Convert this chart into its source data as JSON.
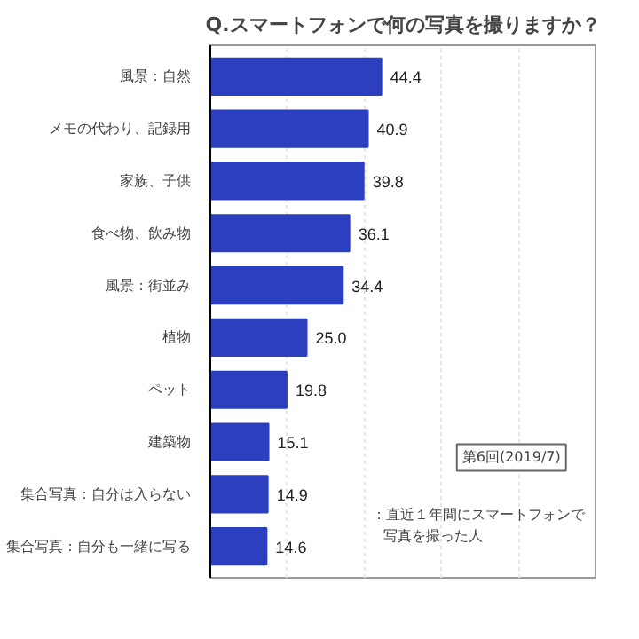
{
  "chart_data": {
    "type": "bar",
    "orientation": "horizontal",
    "title": "Q.スマートフォンで何の写真を撮りますか？",
    "categories": [
      "風景：自然",
      "メモの代わり、記録用",
      "家族、子供",
      "食べ物、飲み物",
      "風景：街並み",
      "植物",
      "ペット",
      "建築物",
      "集合写真：自分は入らない",
      "集合写真：自分も一緒に写る"
    ],
    "values": [
      44.4,
      40.9,
      39.8,
      36.1,
      34.4,
      25.0,
      19.8,
      15.1,
      14.9,
      14.6
    ],
    "color": "#2b3fbf",
    "value_labels": [
      "44.4",
      "40.9",
      "39.8",
      "36.1",
      "34.4",
      "25.0",
      "19.8",
      "15.1",
      "14.9",
      "14.6"
    ],
    "xlim": [
      0,
      100
    ],
    "xticks": [
      {
        "value": 0,
        "label": null
      },
      {
        "value": 20,
        "label": null
      },
      {
        "value": 40,
        "label": null
      },
      {
        "value": 60,
        "label": null
      },
      {
        "value": 80,
        "label": null
      },
      {
        "value": 100,
        "label": null
      }
    ],
    "grid": "x",
    "tick_labels": "y",
    "annotations": [
      "第6回(2019/7)",
      "：直近１年間にスマートフォンで",
      "写真を撮った人"
    ]
  }
}
